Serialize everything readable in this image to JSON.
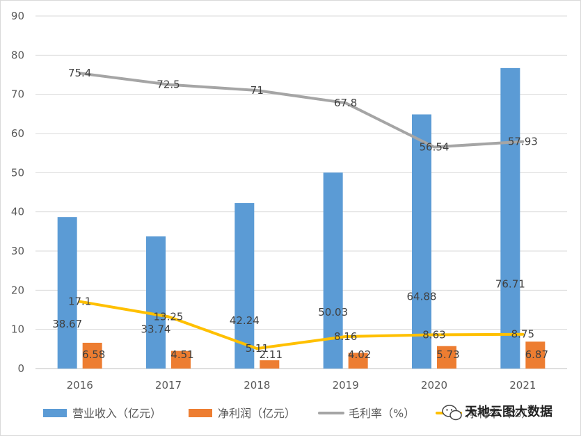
{
  "chart_data": {
    "type": "bar",
    "categories": [
      "2016",
      "2017",
      "2018",
      "2019",
      "2020",
      "2021"
    ],
    "ylim": [
      0,
      90
    ],
    "yticks": [
      0,
      10,
      20,
      30,
      40,
      50,
      60,
      70,
      80,
      90
    ],
    "grid": true,
    "legend_position": "bottom",
    "series": [
      {
        "name": "营业收入（亿元）",
        "kind": "bar",
        "color": "#5b9bd5",
        "values": [
          38.67,
          33.74,
          42.24,
          50.03,
          64.88,
          76.71
        ],
        "labels": [
          "38.67",
          "33.74",
          "42.24",
          "50.03",
          "64.88",
          "76.71"
        ]
      },
      {
        "name": "净利润（亿元）",
        "kind": "bar",
        "color": "#ed7d31",
        "values": [
          6.58,
          4.51,
          2.11,
          4.02,
          5.73,
          6.87
        ],
        "labels": [
          "6.58",
          "4.51",
          "2.11",
          "4.02",
          "5.73",
          "6.87"
        ]
      },
      {
        "name": "毛利率（%）",
        "kind": "line",
        "color": "#a5a5a5",
        "values": [
          75.4,
          72.5,
          71,
          67.8,
          56.54,
          57.93
        ],
        "labels": [
          "75.4",
          "72.5",
          "71",
          "67.8",
          "56.54",
          "57.93"
        ]
      },
      {
        "name": "净利率（%）",
        "kind": "line",
        "color": "#ffc000",
        "values": [
          17.1,
          13.25,
          5.11,
          8.16,
          8.63,
          8.75
        ],
        "labels": [
          "17.1",
          "13.25",
          "5.11",
          "8.16",
          "8.63",
          "8.75"
        ]
      }
    ]
  },
  "legend": {
    "items": [
      "营业收入（亿元）",
      "净利润（亿元）",
      "毛利率（%）",
      "净利率（%）"
    ]
  },
  "watermark": {
    "text": "天地云图大数据",
    "icon": "wechat-icon"
  }
}
